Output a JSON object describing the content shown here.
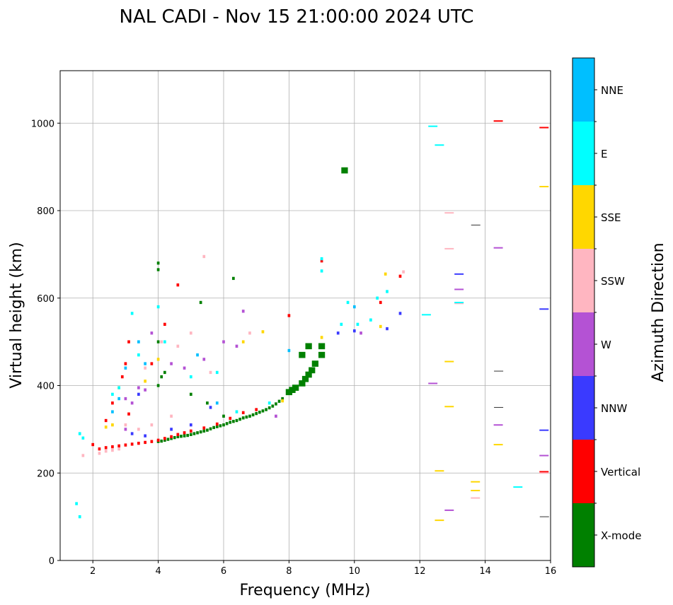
{
  "chart_data": {
    "type": "scatter",
    "title": "NAL CADI - Nov 15 21:00:00 2024 UTC",
    "xlabel": "Frequency (MHz)",
    "ylabel": "Virtual height (km)",
    "xlim": [
      1,
      16
    ],
    "ylim": [
      0,
      1120
    ],
    "xticks": [
      2,
      4,
      6,
      8,
      10,
      12,
      14,
      16
    ],
    "yticks": [
      0,
      200,
      400,
      600,
      800,
      1000
    ],
    "grid": true,
    "colorbar": {
      "label": "Azimuth Direction",
      "placement": "right",
      "categories": [
        "X-mode",
        "Vertical",
        "NNW",
        "W",
        "SSW",
        "SSE",
        "E",
        "NNE"
      ],
      "colors": [
        "#008000",
        "#ff0000",
        "#3a3aff",
        "#b452d4",
        "#ffb6c1",
        "#ffd700",
        "#00ffff",
        "#00bfff"
      ]
    },
    "point_format": [
      "frequency_mhz",
      "virtual_height_km",
      "direction_index"
    ],
    "points": [
      [
        4.0,
        272,
        0
      ],
      [
        4.1,
        273,
        0
      ],
      [
        4.2,
        275,
        0
      ],
      [
        4.3,
        277,
        0
      ],
      [
        4.4,
        279,
        0
      ],
      [
        4.5,
        281,
        0
      ],
      [
        4.6,
        283,
        0
      ],
      [
        4.7,
        284,
        0
      ],
      [
        4.8,
        285,
        0
      ],
      [
        4.9,
        286,
        0
      ],
      [
        5.0,
        288,
        0
      ],
      [
        5.1,
        290,
        0
      ],
      [
        5.2,
        292,
        0
      ],
      [
        5.3,
        294,
        0
      ],
      [
        5.4,
        296,
        0
      ],
      [
        5.5,
        298,
        0
      ],
      [
        5.6,
        301,
        0
      ],
      [
        5.7,
        304,
        0
      ],
      [
        5.8,
        306,
        0
      ],
      [
        5.9,
        308,
        0
      ],
      [
        6.0,
        310,
        0
      ],
      [
        6.1,
        313,
        0
      ],
      [
        6.2,
        316,
        0
      ],
      [
        6.3,
        318,
        0
      ],
      [
        6.4,
        320,
        0
      ],
      [
        6.5,
        323,
        0
      ],
      [
        6.6,
        326,
        0
      ],
      [
        6.7,
        328,
        0
      ],
      [
        6.8,
        330,
        0
      ],
      [
        6.9,
        333,
        0
      ],
      [
        7.0,
        336,
        0
      ],
      [
        7.1,
        339,
        0
      ],
      [
        7.2,
        342,
        0
      ],
      [
        7.3,
        345,
        0
      ],
      [
        7.4,
        349,
        0
      ],
      [
        7.5,
        353,
        0
      ],
      [
        7.6,
        358,
        0
      ],
      [
        7.7,
        364,
        0
      ],
      [
        7.8,
        370,
        0
      ],
      [
        8.0,
        385,
        0
      ],
      [
        8.1,
        390,
        0
      ],
      [
        8.2,
        395,
        0
      ],
      [
        8.4,
        405,
        0
      ],
      [
        8.5,
        415,
        0
      ],
      [
        8.6,
        425,
        0
      ],
      [
        8.7,
        435,
        0
      ],
      [
        8.8,
        450,
        0
      ],
      [
        9.0,
        470,
        0
      ],
      [
        9.0,
        490,
        0
      ],
      [
        8.6,
        490,
        0
      ],
      [
        8.4,
        470,
        0
      ],
      [
        4.0,
        400,
        0
      ],
      [
        4.1,
        420,
        0
      ],
      [
        4.2,
        430,
        0
      ],
      [
        4.0,
        500,
        0
      ],
      [
        5.3,
        590,
        0
      ],
      [
        6.3,
        645,
        0
      ],
      [
        5.0,
        380,
        0
      ],
      [
        9.7,
        892,
        0
      ],
      [
        4.0,
        680,
        0
      ],
      [
        4.0,
        665,
        0
      ],
      [
        5.5,
        360,
        0
      ],
      [
        6.0,
        330,
        0
      ],
      [
        2.0,
        265,
        1
      ],
      [
        2.2,
        255,
        1
      ],
      [
        2.4,
        258,
        1
      ],
      [
        2.6,
        260,
        1
      ],
      [
        2.8,
        262,
        1
      ],
      [
        3.0,
        264,
        1
      ],
      [
        3.2,
        266,
        1
      ],
      [
        3.4,
        268,
        1
      ],
      [
        3.6,
        270,
        1
      ],
      [
        3.8,
        272,
        1
      ],
      [
        4.0,
        275,
        1
      ],
      [
        4.2,
        279,
        1
      ],
      [
        4.4,
        283,
        1
      ],
      [
        4.6,
        288,
        1
      ],
      [
        4.8,
        292,
        1
      ],
      [
        5.0,
        296,
        1
      ],
      [
        5.4,
        303,
        1
      ],
      [
        5.8,
        312,
        1
      ],
      [
        6.2,
        325,
        1
      ],
      [
        6.6,
        338,
        1
      ],
      [
        7.0,
        345,
        1
      ],
      [
        3.0,
        450,
        1
      ],
      [
        3.1,
        500,
        1
      ],
      [
        2.6,
        360,
        1
      ],
      [
        2.9,
        420,
        1
      ],
      [
        3.8,
        450,
        1
      ],
      [
        4.2,
        540,
        1
      ],
      [
        4.6,
        630,
        1
      ],
      [
        8.0,
        560,
        1
      ],
      [
        11.4,
        650,
        1
      ],
      [
        10.8,
        590,
        1
      ],
      [
        14.4,
        1005,
        1
      ],
      [
        15.8,
        990,
        1
      ],
      [
        15.8,
        203,
        1
      ],
      [
        9.0,
        685,
        1
      ],
      [
        3.1,
        335,
        1
      ],
      [
        2.4,
        320,
        1
      ],
      [
        3.2,
        290,
        2
      ],
      [
        3.6,
        285,
        2
      ],
      [
        4.4,
        300,
        2
      ],
      [
        5.0,
        310,
        2
      ],
      [
        3.4,
        380,
        2
      ],
      [
        9.5,
        520,
        2
      ],
      [
        10.0,
        525,
        2
      ],
      [
        11.4,
        565,
        2
      ],
      [
        13.2,
        655,
        2
      ],
      [
        15.8,
        575,
        2
      ],
      [
        15.8,
        298,
        2
      ],
      [
        11.0,
        530,
        2
      ],
      [
        5.6,
        350,
        2
      ],
      [
        3.0,
        370,
        3
      ],
      [
        3.2,
        360,
        3
      ],
      [
        3.4,
        395,
        3
      ],
      [
        3.6,
        390,
        3
      ],
      [
        3.0,
        300,
        3
      ],
      [
        4.4,
        450,
        3
      ],
      [
        4.8,
        440,
        3
      ],
      [
        5.4,
        460,
        3
      ],
      [
        6.0,
        500,
        3
      ],
      [
        6.4,
        490,
        3
      ],
      [
        6.6,
        570,
        3
      ],
      [
        7.6,
        330,
        3
      ],
      [
        10.2,
        520,
        3
      ],
      [
        12.4,
        405,
        3
      ],
      [
        13.2,
        620,
        3
      ],
      [
        14.4,
        715,
        3
      ],
      [
        14.4,
        310,
        3
      ],
      [
        12.9,
        115,
        3
      ],
      [
        15.8,
        240,
        3
      ],
      [
        3.8,
        520,
        3
      ],
      [
        2.2,
        245,
        4
      ],
      [
        2.4,
        250,
        4
      ],
      [
        2.6,
        252,
        4
      ],
      [
        2.8,
        255,
        4
      ],
      [
        1.7,
        240,
        4
      ],
      [
        3.0,
        310,
        4
      ],
      [
        3.4,
        300,
        4
      ],
      [
        3.8,
        310,
        4
      ],
      [
        4.4,
        330,
        4
      ],
      [
        4.6,
        490,
        4
      ],
      [
        5.0,
        520,
        4
      ],
      [
        5.4,
        695,
        4
      ],
      [
        5.6,
        430,
        4
      ],
      [
        6.8,
        520,
        4
      ],
      [
        12.9,
        795,
        4
      ],
      [
        12.9,
        713,
        4
      ],
      [
        13.2,
        588,
        4
      ],
      [
        13.7,
        143,
        4
      ],
      [
        15.8,
        200,
        4
      ],
      [
        11.5,
        660,
        4
      ],
      [
        4.1,
        500,
        4
      ],
      [
        3.6,
        440,
        4
      ],
      [
        2.4,
        305,
        5
      ],
      [
        2.6,
        310,
        5
      ],
      [
        2.8,
        395,
        5
      ],
      [
        3.6,
        410,
        5
      ],
      [
        4.0,
        460,
        5
      ],
      [
        7.2,
        523,
        5
      ],
      [
        7.8,
        365,
        5
      ],
      [
        9.0,
        510,
        5
      ],
      [
        10.8,
        535,
        5
      ],
      [
        10.95,
        655,
        5
      ],
      [
        12.9,
        455,
        5
      ],
      [
        12.9,
        352,
        5
      ],
      [
        12.6,
        205,
        5
      ],
      [
        12.6,
        92,
        5
      ],
      [
        13.7,
        180,
        5
      ],
      [
        13.7,
        160,
        5
      ],
      [
        14.4,
        265,
        5
      ],
      [
        15.8,
        855,
        5
      ],
      [
        6.6,
        500,
        5
      ],
      [
        1.6,
        290,
        6
      ],
      [
        1.7,
        280,
        6
      ],
      [
        1.5,
        130,
        6
      ],
      [
        1.6,
        100,
        6
      ],
      [
        2.6,
        380,
        6
      ],
      [
        2.8,
        395,
        6
      ],
      [
        3.2,
        565,
        6
      ],
      [
        3.4,
        470,
        6
      ],
      [
        4.0,
        580,
        6
      ],
      [
        4.2,
        500,
        6
      ],
      [
        5.0,
        420,
        6
      ],
      [
        5.8,
        430,
        6
      ],
      [
        6.4,
        340,
        6
      ],
      [
        7.4,
        360,
        6
      ],
      [
        9.0,
        690,
        6
      ],
      [
        9.0,
        662,
        6
      ],
      [
        9.6,
        540,
        6
      ],
      [
        9.8,
        590,
        6
      ],
      [
        10.1,
        540,
        6
      ],
      [
        10.5,
        550,
        6
      ],
      [
        10.7,
        600,
        6
      ],
      [
        11.0,
        615,
        6
      ],
      [
        12.2,
        562,
        6
      ],
      [
        12.4,
        993,
        6
      ],
      [
        12.6,
        950,
        6
      ],
      [
        15.0,
        168,
        6
      ],
      [
        13.2,
        590,
        6
      ],
      [
        2.6,
        340,
        7
      ],
      [
        2.8,
        370,
        7
      ],
      [
        3.0,
        440,
        7
      ],
      [
        3.4,
        500,
        7
      ],
      [
        5.2,
        470,
        7
      ],
      [
        8.0,
        480,
        7
      ],
      [
        10.0,
        580,
        7
      ],
      [
        5.8,
        360,
        7
      ],
      [
        3.6,
        450,
        7
      ]
    ],
    "unclassified_color": "#333333",
    "unclassified_points": [
      [
        13.7,
        767
      ],
      [
        14.4,
        433
      ],
      [
        14.4,
        350
      ],
      [
        15.8,
        100
      ]
    ]
  }
}
